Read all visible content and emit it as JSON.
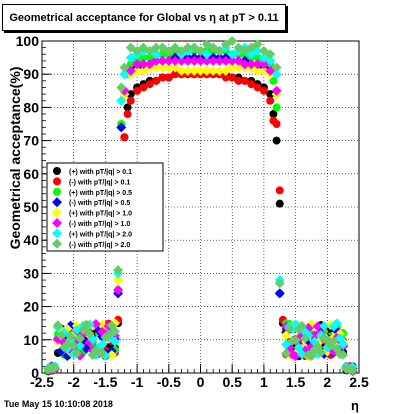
{
  "timestamp": "Tue May 15 10:10:08 2018",
  "chart_data": {
    "type": "scatter",
    "title": "Geometrical acceptance for Global vs  η at pT > 0.11",
    "xlabel": "η",
    "ylabel": "Geometrical acceptance(%)",
    "xlim": [
      -2.5,
      2.5
    ],
    "ylim": [
      0,
      100
    ],
    "x_ticks": [
      "-2.5",
      "-2",
      "-1.5",
      "-1",
      "-0.5",
      "0",
      "0.5",
      "1",
      "1.5",
      "2",
      "2.5"
    ],
    "y_ticks": [
      "0",
      "10",
      "20",
      "30",
      "40",
      "50",
      "60",
      "70",
      "80",
      "90",
      "100"
    ],
    "grid": true,
    "legend_position": "left-middle",
    "series": [
      {
        "name": "(+) with pT/|q| > 0.1",
        "color": "#000000",
        "marker": "circle",
        "x": [
          -1.3,
          -1.25,
          -1.2,
          -1.15,
          -1.1,
          -1.0,
          -0.9,
          -0.8,
          -0.7,
          -0.6,
          -0.5,
          -0.4,
          -0.3,
          -0.2,
          -0.1,
          0.0,
          0.1,
          0.2,
          0.3,
          0.4,
          0.5,
          0.6,
          0.7,
          0.8,
          0.9,
          1.0,
          1.1,
          1.15,
          1.2,
          1.25,
          1.3
        ],
        "y": [
          15,
          53,
          71,
          80,
          84,
          86,
          87,
          88,
          88,
          89,
          89,
          90,
          90,
          90,
          90,
          90,
          90,
          90,
          90,
          90,
          89,
          89,
          88,
          88,
          87,
          86,
          84,
          78,
          70,
          51,
          15
        ]
      },
      {
        "name": "(-) with pT/|q| > 0.1",
        "color": "#ff0000",
        "marker": "circle",
        "x": [
          -1.3,
          -1.25,
          -1.2,
          -1.15,
          -1.1,
          -1.0,
          -0.9,
          -0.8,
          -0.7,
          -0.6,
          -0.5,
          -0.4,
          -0.3,
          -0.2,
          -0.1,
          0.0,
          0.1,
          0.2,
          0.3,
          0.4,
          0.5,
          0.6,
          0.7,
          0.8,
          0.9,
          1.0,
          1.1,
          1.15,
          1.2,
          1.25,
          1.3
        ],
        "y": [
          16,
          54,
          71,
          78,
          82,
          85,
          86,
          87,
          88,
          89,
          89,
          90,
          90,
          90,
          90,
          90,
          90,
          90,
          90,
          89,
          89,
          88,
          88,
          87,
          86,
          85,
          82,
          76,
          75,
          55,
          16
        ]
      },
      {
        "name": "(+) with pT/|q| > 0.5",
        "color": "#00ff00",
        "marker": "circle",
        "x": [
          -1.3,
          -1.25,
          -1.2,
          -1.15,
          -1.1,
          -1.0,
          -0.9,
          -0.8,
          -0.7,
          -0.6,
          -0.5,
          -0.4,
          -0.3,
          -0.2,
          -0.1,
          0.0,
          0.1,
          0.2,
          0.3,
          0.4,
          0.5,
          0.6,
          0.7,
          0.8,
          0.9,
          1.0,
          1.1,
          1.15,
          1.2,
          1.25
        ],
        "y": [
          25,
          75,
          85,
          90,
          93,
          94,
          95,
          95,
          96,
          96,
          96,
          97,
          97,
          97,
          97,
          97,
          97,
          97,
          97,
          97,
          96,
          96,
          96,
          95,
          95,
          94,
          93,
          88,
          80,
          24
        ]
      },
      {
        "name": "(-) with pT/|q| > 0.5",
        "color": "#0000ff",
        "marker": "diamond",
        "x": [
          -1.3,
          -1.25,
          -1.2,
          -1.1,
          -1.0,
          -0.9,
          -0.8,
          -0.7,
          -0.6,
          -0.5,
          -0.4,
          -0.3,
          -0.2,
          -0.1,
          0.0,
          0.1,
          0.2,
          0.3,
          0.4,
          0.5,
          0.6,
          0.7,
          0.8,
          0.9,
          1.0,
          1.1,
          1.2,
          1.25
        ],
        "y": [
          24,
          74,
          84,
          91,
          92,
          93,
          93,
          94,
          94,
          94,
          95,
          95,
          95,
          95,
          95,
          95,
          95,
          95,
          95,
          94,
          94,
          94,
          93,
          93,
          92,
          91,
          84,
          24
        ]
      },
      {
        "name": "(+) with pT/|q| > 1.0",
        "color": "#ffff00",
        "marker": "diamond",
        "x": [
          -1.3,
          -1.2,
          -1.1,
          -1.0,
          -0.9,
          -0.8,
          -0.7,
          -0.6,
          -0.5,
          -0.4,
          -0.3,
          -0.2,
          -0.1,
          0.0,
          0.1,
          0.2,
          0.3,
          0.4,
          0.5,
          0.6,
          0.7,
          0.8,
          0.9,
          1.0,
          1.1,
          1.2
        ],
        "y": [
          28,
          84,
          90,
          91,
          91,
          92,
          92,
          92,
          92,
          92,
          91,
          91,
          91,
          91,
          91,
          91,
          91,
          91,
          92,
          92,
          92,
          92,
          91,
          91,
          90,
          84
        ]
      },
      {
        "name": "(-) with pT/|q| > 1.0",
        "color": "#ff00ff",
        "marker": "diamond",
        "x": [
          -1.3,
          -1.2,
          -1.1,
          -1.0,
          -0.9,
          -0.8,
          -0.7,
          -0.6,
          -0.5,
          -0.4,
          -0.3,
          -0.2,
          -0.1,
          0.0,
          0.1,
          0.2,
          0.3,
          0.4,
          0.5,
          0.6,
          0.7,
          0.8,
          0.9,
          1.0,
          1.1,
          1.2
        ],
        "y": [
          25,
          85,
          91,
          93,
          93,
          93,
          94,
          94,
          94,
          94,
          94,
          94,
          94,
          94,
          94,
          94,
          94,
          94,
          94,
          94,
          93,
          93,
          93,
          93,
          91,
          85
        ]
      },
      {
        "name": "(+) with pT/|q| > 2.0",
        "color": "#00ffff",
        "marker": "diamond",
        "x": [
          -1.3,
          -1.25,
          -1.2,
          -1.1,
          -1.0,
          -0.9,
          -0.8,
          -0.7,
          -0.6,
          -0.5,
          -0.4,
          -0.3,
          -0.2,
          -0.1,
          0.0,
          0.1,
          0.2,
          0.3,
          0.4,
          0.5,
          0.6,
          0.7,
          0.8,
          0.9,
          1.0,
          1.1,
          1.2,
          1.25
        ],
        "y": [
          30,
          82,
          90,
          95,
          96,
          97,
          97,
          96,
          98,
          97,
          98,
          96,
          97,
          98,
          97,
          96,
          98,
          97,
          98,
          96,
          97,
          98,
          96,
          97,
          95,
          94,
          90,
          28
        ]
      },
      {
        "name": "(-) with pT/|q| > 2.0",
        "color": "#66cc66",
        "marker": "diamond",
        "x": [
          -1.3,
          -1.25,
          -1.2,
          -1.1,
          -1.0,
          -0.9,
          -0.8,
          -0.7,
          -0.6,
          -0.5,
          -0.4,
          -0.3,
          -0.2,
          -0.1,
          0.0,
          0.1,
          0.2,
          0.3,
          0.4,
          0.5,
          0.6,
          0.7,
          0.8,
          0.9,
          1.0,
          1.1,
          1.2,
          1.25
        ],
        "y": [
          31,
          86,
          92,
          98,
          97,
          98,
          97,
          98,
          98,
          97,
          98,
          97,
          98,
          98,
          97,
          99,
          98,
          97,
          99,
          100,
          98,
          97,
          98,
          99,
          97,
          96,
          92,
          27
        ]
      }
    ]
  }
}
